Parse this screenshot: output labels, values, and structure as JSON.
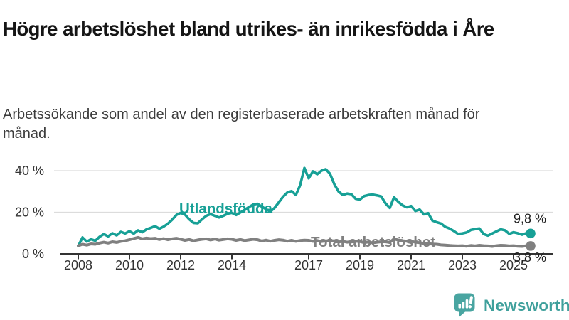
{
  "header": {
    "title": "Högre arbetslöshet bland utrikes- än inrikesfödda i Åre",
    "subtitle": "Arbetssökande som andel av den registerbaserade arbetskraften månad för månad."
  },
  "colors": {
    "background": "#ffffff",
    "title_text": "#151515",
    "body_text": "#3c3c3c",
    "axis_text": "#333333",
    "axis_line": "#333333",
    "grid_line": "#dcdcdc",
    "accent_teal": "#17a096",
    "series_gray": "#808080",
    "end_label_text": "#1f1f1f",
    "logo_teal": "#49a5a1",
    "logo_text_teal": "#3fa09c"
  },
  "chart_data": {
    "type": "line",
    "title": "Högre arbetslöshet bland utrikes- än inrikesfödda i Åre",
    "subtitle": "Arbetssökande som andel av den registerbaserade arbetskraften månad för månad.",
    "grid": true,
    "legend_position": "inline-labels",
    "x_axis": {
      "label": "",
      "ticks": [
        2008,
        2010,
        2012,
        2014,
        2017,
        2019,
        2021,
        2023,
        2025
      ],
      "tick_labels": [
        "2008",
        "2010",
        "2012",
        "2014",
        "2017",
        "2019",
        "2021",
        "2023",
        "2025"
      ],
      "range": [
        2007.3,
        2026.6
      ]
    },
    "y_axis": {
      "label": "",
      "ticks": [
        0,
        20,
        40
      ],
      "tick_labels": [
        "0 %",
        "20 %",
        "40 %"
      ],
      "range": [
        0,
        44
      ]
    },
    "x_encoding": {
      "unit": "decimal_year_bimonthly",
      "start": 2008.0,
      "step_years": 0.166667
    },
    "series": [
      {
        "name": "Utlandsfödda",
        "color": "#17a096",
        "end_value": 9.8,
        "end_label": "9,8 %",
        "values": [
          3.8,
          7.9,
          5.9,
          7.0,
          6.3,
          8.2,
          9.5,
          8.4,
          9.9,
          8.9,
          10.6,
          9.8,
          10.9,
          9.7,
          11.3,
          10.4,
          11.8,
          12.5,
          13.3,
          12.1,
          13.1,
          14.5,
          16.4,
          18.7,
          19.7,
          18.9,
          16.6,
          14.9,
          14.7,
          16.6,
          18.3,
          19.1,
          18.3,
          17.5,
          18.3,
          19.3,
          19.7,
          18.7,
          19.9,
          21.2,
          22.5,
          23.7,
          24.1,
          22.7,
          21.5,
          20.3,
          22.1,
          24.8,
          27.5,
          29.5,
          30.2,
          28.3,
          33.0,
          41.3,
          36.3,
          39.7,
          38.3,
          40.0,
          40.7,
          38.5,
          33.5,
          30.0,
          28.3,
          29.0,
          28.7,
          26.5,
          26.1,
          27.8,
          28.3,
          28.5,
          28.1,
          27.6,
          24.3,
          22.1,
          27.2,
          25.0,
          23.3,
          22.4,
          23.0,
          20.6,
          21.3,
          19.0,
          19.6,
          16.0,
          15.2,
          14.6,
          13.0,
          12.2,
          11.0,
          9.6,
          9.8,
          10.3,
          11.5,
          11.9,
          12.2,
          9.5,
          8.8,
          9.8,
          10.8,
          11.8,
          11.3,
          9.6,
          10.4,
          9.9,
          9.2,
          10.0,
          9.8
        ]
      },
      {
        "name": "Total arbetslöshet",
        "color": "#808080",
        "end_value": 3.8,
        "end_label": "3,8 %",
        "values": [
          3.9,
          4.6,
          4.2,
          4.8,
          4.6,
          5.2,
          5.6,
          5.2,
          5.8,
          5.5,
          6.0,
          6.3,
          6.8,
          7.4,
          7.9,
          7.2,
          7.6,
          7.3,
          7.5,
          6.9,
          7.3,
          6.8,
          7.2,
          7.5,
          7.0,
          6.5,
          6.9,
          6.3,
          6.7,
          7.0,
          7.2,
          6.7,
          7.1,
          6.6,
          6.9,
          7.2,
          7.0,
          6.5,
          6.9,
          6.4,
          6.7,
          7.0,
          6.8,
          6.2,
          6.6,
          6.1,
          6.5,
          6.8,
          6.6,
          6.1,
          6.5,
          6.0,
          6.4,
          6.6,
          6.5,
          6.0,
          6.4,
          5.9,
          6.2,
          6.4,
          6.2,
          5.7,
          6.0,
          5.6,
          5.9,
          6.1,
          5.9,
          5.4,
          5.7,
          5.3,
          5.6,
          5.8,
          5.8,
          5.5,
          7.2,
          6.6,
          6.3,
          6.1,
          6.0,
          5.6,
          5.4,
          5.0,
          4.9,
          4.7,
          4.6,
          4.3,
          4.2,
          4.0,
          3.9,
          3.8,
          3.9,
          3.7,
          4.0,
          3.8,
          4.1,
          3.9,
          3.8,
          3.6,
          3.9,
          4.1,
          4.0,
          3.8,
          3.9,
          3.7,
          3.6,
          3.9,
          3.8
        ]
      }
    ]
  },
  "footer": {
    "brand": "Newsworthy",
    "logo_icon": "bar-chart-speech-bubble-icon"
  }
}
